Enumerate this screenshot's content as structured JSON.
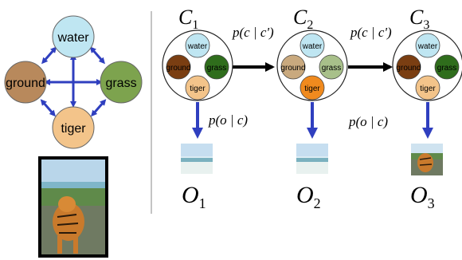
{
  "left_graph": {
    "nodes": {
      "water": "water",
      "ground": "ground",
      "grass": "grass",
      "tiger": "tiger"
    }
  },
  "chain": {
    "states": [
      {
        "label": "C",
        "sub": "1",
        "water": "water",
        "ground": "ground",
        "grass": "grass",
        "tiger": "tiger"
      },
      {
        "label": "C",
        "sub": "2",
        "water": "water",
        "ground": "ground",
        "grass": "grass",
        "tiger": "tiger"
      },
      {
        "label": "C",
        "sub": "3",
        "water": "water",
        "ground": "ground",
        "grass": "grass",
        "tiger": "tiger"
      }
    ],
    "transition_label": "p(c | c')",
    "transition_label_2": "p(c | c')",
    "emission_label": "p(o | c)",
    "emission_label_2": "p(o | c)",
    "observations": [
      {
        "label": "O",
        "sub": "1"
      },
      {
        "label": "O",
        "sub": "2"
      },
      {
        "label": "O",
        "sub": "3"
      }
    ]
  },
  "colors": {
    "water": "#bfe6f2",
    "ground": "#9a6a3a",
    "grass": "#6a9a3a",
    "tiger": "#f3c48a",
    "tiger_active": "#f08a1e",
    "ground_active": "#7a3e12",
    "grass_active": "#2f6d1c",
    "arrow_blue": "#2f3fbf"
  }
}
